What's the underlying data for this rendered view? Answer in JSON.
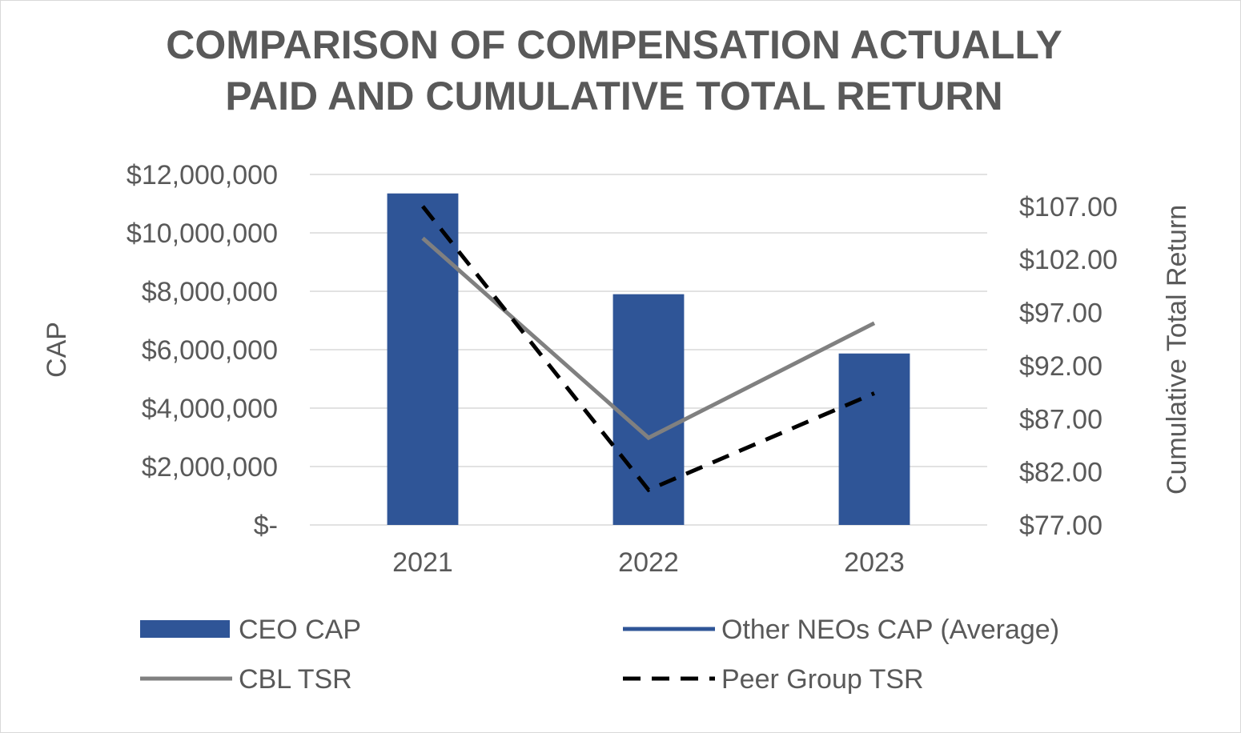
{
  "chart_data": {
    "type": "bar",
    "title": [
      "COMPARISON OF COMPENSATION ACTUALLY",
      "PAID AND CUMULATIVE TOTAL RETURN"
    ],
    "categories": [
      "2021",
      "2022",
      "2023"
    ],
    "ylabel": "CAP",
    "y2label": "Cumulative Total Return",
    "ylim": [
      0,
      12000000
    ],
    "y2lim": [
      77,
      110
    ],
    "yticks": [
      0,
      2000000,
      4000000,
      6000000,
      8000000,
      10000000,
      12000000
    ],
    "ytick_labels": [
      "$-",
      "$2,000,000",
      "$4,000,000",
      "$6,000,000",
      "$8,000,000",
      "$10,000,000",
      "$12,000,000"
    ],
    "y2ticks": [
      77,
      82,
      87,
      92,
      97,
      102,
      107
    ],
    "y2tick_labels": [
      "$77.00",
      "$82.00",
      "$87.00",
      "$92.00",
      "$97.00",
      "$102.00",
      "$107.00"
    ],
    "grid": true,
    "legend_position": "bottom",
    "series": [
      {
        "name": "CEO CAP",
        "kind": "bar",
        "axis": "left",
        "color": "#2F5597",
        "values": [
          11350000,
          7900000,
          5870000
        ]
      },
      {
        "name": "Other NEOs CAP (Average)",
        "kind": "line",
        "axis": "left",
        "color": "#2F5597",
        "values": [
          null,
          null,
          null
        ]
      },
      {
        "name": "CBL TSR",
        "kind": "line",
        "axis": "right",
        "color": "#808080",
        "values": [
          104.0,
          85.2,
          96.0
        ]
      },
      {
        "name": "Peer Group TSR",
        "kind": "line",
        "axis": "right",
        "color": "#000000",
        "dashed": true,
        "values": [
          107.0,
          80.3,
          89.4
        ]
      }
    ]
  }
}
